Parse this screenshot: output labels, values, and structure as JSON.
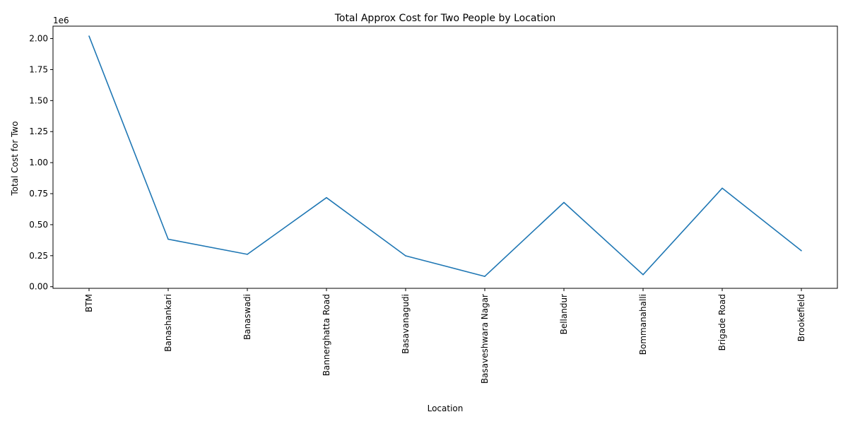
{
  "chart_data": {
    "type": "line",
    "title": "Total Approx Cost for Two People by Location",
    "xlabel": "Location",
    "ylabel": "Total Cost for Two",
    "y_offset_label": "1e6",
    "categories": [
      "BTM",
      "Banashankari",
      "Banaswadi",
      "Bannerghatta Road",
      "Basavanagudi",
      "Basaveshwara Nagar",
      "Bellandur",
      "Bommanahalli",
      "Brigade Road",
      "Brookefield"
    ],
    "series": [
      {
        "values": [
          2020000,
          383000,
          261000,
          718000,
          249000,
          83000,
          679000,
          97000,
          794000,
          290000
        ]
      }
    ],
    "ylim": [
      -13000,
      2100000
    ],
    "yticks": [
      0,
      250000,
      500000,
      750000,
      1000000,
      1250000,
      1500000,
      1750000,
      2000000
    ],
    "ytick_labels": [
      "0.00",
      "0.25",
      "0.50",
      "0.75",
      "1.00",
      "1.25",
      "1.50",
      "1.75",
      "2.00"
    ],
    "grid": false,
    "colors": {
      "line": "#1f77b4",
      "axis": "#000000"
    }
  }
}
